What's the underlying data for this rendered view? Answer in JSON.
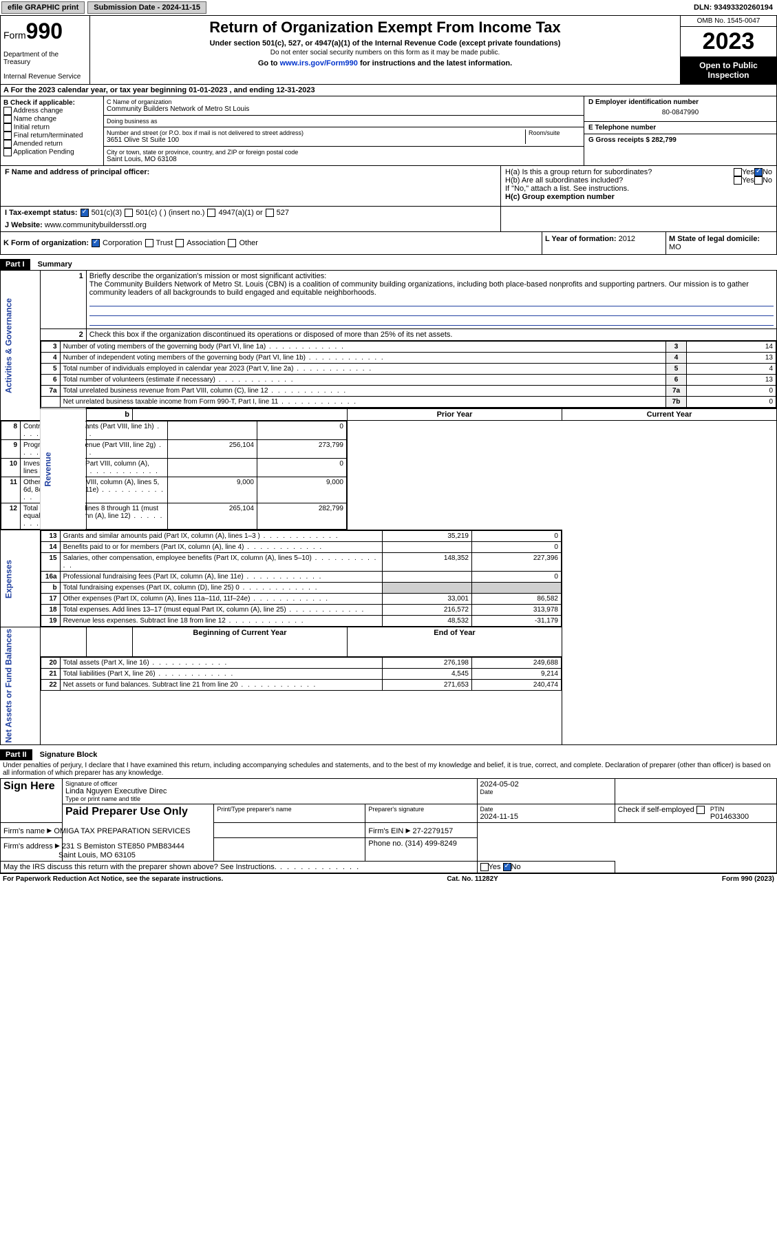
{
  "topbar": {
    "efile": "efile GRAPHIC print",
    "sub_label": "Submission Date - 2024-11-15",
    "dln": "DLN: 93493320260194"
  },
  "header": {
    "form_word": "Form",
    "form_num": "990",
    "dept": "Department of the Treasury",
    "irs": "Internal Revenue Service",
    "title": "Return of Organization Exempt From Income Tax",
    "sub1": "Under section 501(c), 527, or 4947(a)(1) of the Internal Revenue Code (except private foundations)",
    "sub2": "Do not enter social security numbers on this form as it may be made public.",
    "sub3_pre": "Go to ",
    "sub3_link": "www.irs.gov/Form990",
    "sub3_post": " for instructions and the latest information.",
    "omb": "OMB No. 1545-0047",
    "year": "2023",
    "inspect": "Open to Public Inspection"
  },
  "row_a": {
    "text": "A For the 2023 calendar year, or tax year beginning 01-01-2023   , and ending 12-31-2023"
  },
  "section_b": {
    "hdr": "B Check if applicable:",
    "opts": [
      "Address change",
      "Name change",
      "Initial return",
      "Final return/terminated",
      "Amended return",
      "Application Pending"
    ]
  },
  "section_c": {
    "name_lbl": "C Name of organization",
    "name": "Community Builders Network of Metro St Louis",
    "dba_lbl": "Doing business as",
    "dba": "",
    "addr_lbl": "Number and street (or P.O. box if mail is not delivered to street address)",
    "room_lbl": "Room/suite",
    "addr": "3651 Olive St Suite 100",
    "city_lbl": "City or town, state or province, country, and ZIP or foreign postal code",
    "city": "Saint Louis, MO  63108"
  },
  "section_d": {
    "lbl": "D Employer identification number",
    "val": "80-0847990"
  },
  "section_e": {
    "lbl": "E Telephone number",
    "val": ""
  },
  "section_g": {
    "lbl": "G Gross receipts $",
    "val": "282,799"
  },
  "section_f": {
    "lbl": "F  Name and address of principal officer:",
    "val": ""
  },
  "section_h": {
    "ha": "H(a)  Is this a group return for subordinates?",
    "hb": "H(b)  Are all subordinates included?",
    "hb2": "If \"No,\" attach a list. See instructions.",
    "hc": "H(c)  Group exemption number ",
    "yes": "Yes",
    "no": "No"
  },
  "row_i": {
    "lbl": "I   Tax-exempt status:",
    "o1": "501(c)(3)",
    "o2": "501(c) (  ) (insert no.)",
    "o3": "4947(a)(1) or",
    "o4": "527"
  },
  "row_j": {
    "lbl": "J   Website: ",
    "val": "www.communitybuildersstl.org"
  },
  "row_k": {
    "lbl": "K Form of organization:",
    "o1": "Corporation",
    "o2": "Trust",
    "o3": "Association",
    "o4": "Other"
  },
  "row_l": {
    "lbl": "L Year of formation:",
    "val": "2012"
  },
  "row_m": {
    "lbl": "M State of legal domicile:",
    "val": "MO"
  },
  "part1": {
    "hdr": "Part I",
    "title": "Summary",
    "l1_lbl": "Briefly describe the organization's mission or most significant activities:",
    "l1_txt": "The Community Builders Network of Metro St. Louis (CBN) is a coalition of community building organizations, including both place-based nonprofits and supporting partners. Our mission is to gather community leaders of all backgrounds to build engaged and equitable neighborhoods.",
    "l2": "Check this box     if the organization discontinued its operations or disposed of more than 25% of its net assets.",
    "rows_gov": [
      {
        "n": "3",
        "d": "Number of voting members of the governing body (Part VI, line 1a)",
        "r": "3",
        "v": "14"
      },
      {
        "n": "4",
        "d": "Number of independent voting members of the governing body (Part VI, line 1b)",
        "r": "4",
        "v": "13"
      },
      {
        "n": "5",
        "d": "Total number of individuals employed in calendar year 2023 (Part V, line 2a)",
        "r": "5",
        "v": "4"
      },
      {
        "n": "6",
        "d": "Total number of volunteers (estimate if necessary)",
        "r": "6",
        "v": "13"
      },
      {
        "n": "7a",
        "d": "Total unrelated business revenue from Part VIII, column (C), line 12",
        "r": "7a",
        "v": "0"
      },
      {
        "n": "",
        "d": "Net unrelated business taxable income from Form 990-T, Part I, line 11",
        "r": "7b",
        "v": "0"
      }
    ],
    "col_prior": "Prior Year",
    "col_curr": "Current Year",
    "rows_rev": [
      {
        "n": "8",
        "d": "Contributions and grants (Part VIII, line 1h)",
        "p": "",
        "c": "0"
      },
      {
        "n": "9",
        "d": "Program service revenue (Part VIII, line 2g)",
        "p": "256,104",
        "c": "273,799"
      },
      {
        "n": "10",
        "d": "Investment income (Part VIII, column (A), lines 3, 4, and 7d )",
        "p": "",
        "c": "0"
      },
      {
        "n": "11",
        "d": "Other revenue (Part VIII, column (A), lines 5, 6d, 8c, 9c, 10c, and 11e)",
        "p": "9,000",
        "c": "9,000"
      },
      {
        "n": "12",
        "d": "Total revenue—add lines 8 through 11 (must equal Part VIII, column (A), line 12)",
        "p": "265,104",
        "c": "282,799"
      }
    ],
    "rows_exp": [
      {
        "n": "13",
        "d": "Grants and similar amounts paid (Part IX, column (A), lines 1–3 )",
        "p": "35,219",
        "c": "0"
      },
      {
        "n": "14",
        "d": "Benefits paid to or for members (Part IX, column (A), line 4)",
        "p": "",
        "c": "0"
      },
      {
        "n": "15",
        "d": "Salaries, other compensation, employee benefits (Part IX, column (A), lines 5–10)",
        "p": "148,352",
        "c": "227,396"
      },
      {
        "n": "16a",
        "d": "Professional fundraising fees (Part IX, column (A), line 11e)",
        "p": "",
        "c": "0"
      },
      {
        "n": "b",
        "d": "Total fundraising expenses (Part IX, column (D), line 25) 0",
        "p": "__SHADE__",
        "c": "__SHADE__"
      },
      {
        "n": "17",
        "d": "Other expenses (Part IX, column (A), lines 11a–11d, 11f–24e)",
        "p": "33,001",
        "c": "86,582"
      },
      {
        "n": "18",
        "d": "Total expenses. Add lines 13–17 (must equal Part IX, column (A), line 25)",
        "p": "216,572",
        "c": "313,978"
      },
      {
        "n": "19",
        "d": "Revenue less expenses. Subtract line 18 from line 12",
        "p": "48,532",
        "c": "-31,179"
      }
    ],
    "col_beg": "Beginning of Current Year",
    "col_end": "End of Year",
    "rows_net": [
      {
        "n": "20",
        "d": "Total assets (Part X, line 16)",
        "p": "276,198",
        "c": "249,688"
      },
      {
        "n": "21",
        "d": "Total liabilities (Part X, line 26)",
        "p": "4,545",
        "c": "9,214"
      },
      {
        "n": "22",
        "d": "Net assets or fund balances. Subtract line 21 from line 20",
        "p": "271,653",
        "c": "240,474"
      }
    ],
    "vlabels": {
      "gov": "Activities & Governance",
      "rev": "Revenue",
      "exp": "Expenses",
      "net": "Net Assets or Fund Balances"
    }
  },
  "part2": {
    "hdr": "Part II",
    "title": "Signature Block",
    "perjury": "Under penalties of perjury, I declare that I have examined this return, including accompanying schedules and statements, and to the best of my knowledge and belief, it is true, correct, and complete. Declaration of preparer (other than officer) is based on all information of which preparer has any knowledge.",
    "sign_here": "Sign Here",
    "sig_officer": "Signature of officer",
    "sig_name": "Linda Nguyen Executive Direc",
    "sig_type": "Type or print name and title",
    "date_lbl": "Date",
    "date_val": "2024-05-02",
    "paid": "Paid Preparer Use Only",
    "prep_name_lbl": "Print/Type preparer's name",
    "prep_sig_lbl": "Preparer's signature",
    "prep_date": "2024-11-15",
    "check_self": "Check       if self-employed",
    "ptin_lbl": "PTIN",
    "ptin": "P01463300",
    "firm_name_lbl": "Firm's name  ",
    "firm_name": "OMIGA TAX PREPARATION SERVICES",
    "firm_ein_lbl": "Firm's EIN ",
    "firm_ein": "27-2279157",
    "firm_addr_lbl": "Firm's address ",
    "firm_addr": "231 S Bemiston STE850 PMB83444",
    "firm_city": "Saint Louis, MO  63105",
    "phone_lbl": "Phone no.",
    "phone": "(314) 499-8249",
    "discuss": "May the IRS discuss this return with the preparer shown above? See Instructions.",
    "yes": "Yes",
    "no": "No"
  },
  "footer": {
    "left": "For Paperwork Reduction Act Notice, see the separate instructions.",
    "mid": "Cat. No. 11282Y",
    "right": "Form 990 (2023)"
  }
}
